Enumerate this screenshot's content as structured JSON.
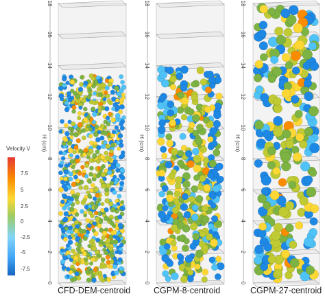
{
  "colorbar": {
    "title": "Velocity V",
    "ticks": [
      "7.5",
      "5",
      "2.5",
      "0",
      "-2.5",
      "-5",
      "-7.5"
    ],
    "colors": [
      "#f4511e",
      "#fb8c00",
      "#fdd835",
      "#c0ca33",
      "#7cb342",
      "#4fc3f7",
      "#1e88e5"
    ]
  },
  "panels": [
    {
      "caption": "CFD-DEM-centroid",
      "axis_label": "H (cm)",
      "ticks": [
        "0",
        "2",
        "4",
        "6",
        "8",
        "10",
        "12",
        "14",
        "16",
        "18"
      ],
      "fill_height_cm": 13.5,
      "particle_size": "small"
    },
    {
      "caption": "CGPM-8-centroid",
      "axis_label": "H (cm)",
      "ticks": [
        "0",
        "2",
        "4",
        "6",
        "8",
        "10",
        "12",
        "14",
        "16",
        "18"
      ],
      "fill_height_cm": 14,
      "particle_size": "medium"
    },
    {
      "caption": "CGPM-27-centroid",
      "axis_label": "H (cm)",
      "ticks": [
        "0",
        "2",
        "4",
        "6",
        "8",
        "10",
        "12",
        "14",
        "16",
        "18"
      ],
      "fill_height_cm": 18,
      "particle_size": "large"
    }
  ]
}
